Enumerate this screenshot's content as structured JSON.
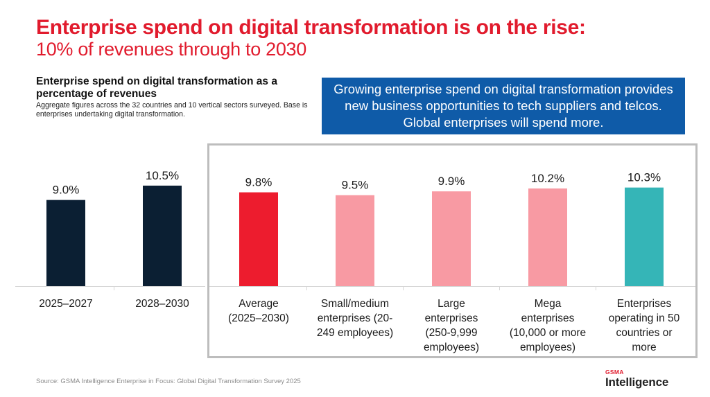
{
  "header": {
    "title_line1": "Enterprise spend on digital transformation is on the rise:",
    "title_line2": "10% of revenues through to 2030"
  },
  "subtitle": {
    "heading": "Enterprise spend on digital transformation as a percentage of revenues",
    "description": "Aggregate figures across the 32 countries and 10 vertical sectors surveyed. Base is enterprises undertaking digital transformation."
  },
  "callout": {
    "text": "Growing enterprise spend on digital transformation provides new business opportunities to tech suppliers and telcos. Global enterprises will spend more."
  },
  "footer": {
    "source": "Source: GSMA Intelligence Enterprise in Focus: Global Digital Transformation Survey 2025"
  },
  "logo": {
    "top": "GSMA",
    "bottom": "Intelligence"
  },
  "colors": {
    "title_red": "#e11b2d",
    "navy": "#0b1f33",
    "red": "#ed1c2e",
    "pink": "#f89aa3",
    "teal": "#35b5b7",
    "callout_blue": "#0f5ba8"
  },
  "chart_data": {
    "type": "bar",
    "title": "Enterprise spend on digital transformation as a percentage of revenues",
    "xlabel": "",
    "ylabel": "",
    "unit": "%",
    "ylim": [
      0,
      11
    ],
    "grid": false,
    "categories": [
      "2025–2027",
      "2028–2030",
      "Average (2025–2030)",
      "Small/medium enterprises (20-249 employees)",
      "Large enterprises (250-9,999 employees)",
      "Mega enterprises (10,000 or more employees)",
      "Enterprises operating in 50 countries or more"
    ],
    "category_lines": [
      [
        "2025–2027"
      ],
      [
        "2028–2030"
      ],
      [
        "Average",
        "(2025–2030)"
      ],
      [
        "Small/medium",
        "enterprises (20-",
        "249 employees)"
      ],
      [
        "Large",
        "enterprises",
        "(250-9,999",
        "employees)"
      ],
      [
        "Mega",
        "enterprises",
        "(10,000 or more",
        "employees)"
      ],
      [
        "Enterprises",
        "operating in 50",
        "countries or",
        "more"
      ]
    ],
    "values": [
      9.0,
      10.5,
      9.8,
      9.5,
      9.9,
      10.2,
      10.3
    ],
    "labels": [
      "9.0%",
      "10.5%",
      "9.8%",
      "9.5%",
      "9.9%",
      "10.2%",
      "10.3%"
    ],
    "bar_colors": [
      "#0b1f33",
      "#0b1f33",
      "#ed1c2e",
      "#f89aa3",
      "#f89aa3",
      "#f89aa3",
      "#35b5b7"
    ]
  }
}
